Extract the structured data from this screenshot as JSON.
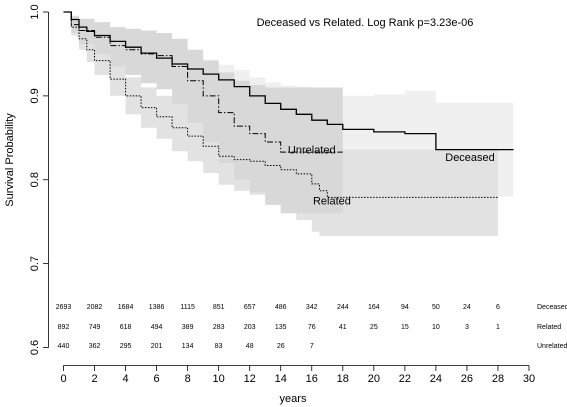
{
  "chart_data": {
    "type": "line",
    "title": "Deceased vs Related. Log Rank p=3.23e-06",
    "xlabel": "years",
    "ylabel": "Survival Probability",
    "xlim": [
      0,
      30
    ],
    "ylim": [
      0.6,
      1.0
    ],
    "x_ticks": [
      0,
      2,
      4,
      6,
      8,
      10,
      12,
      14,
      16,
      18,
      20,
      22,
      24,
      26,
      28,
      30
    ],
    "y_ticks": [
      0.6,
      0.7,
      0.8,
      0.9,
      1.0
    ],
    "y_tick_labels": [
      "0.6",
      "0.7",
      "0.8",
      "0.9",
      "1.0"
    ],
    "grid": false,
    "legend": "none",
    "series": [
      {
        "name": "Deceased",
        "line_style": "solid",
        "band_color": "#f0f0f0",
        "x": [
          0,
          0.5,
          1,
          1.5,
          2,
          3,
          4,
          5,
          6,
          7,
          8,
          9,
          10,
          11,
          12,
          13,
          14,
          15,
          16,
          17,
          18,
          20,
          22,
          24,
          26,
          28,
          29
        ],
        "y": [
          1.0,
          0.991,
          0.982,
          0.977,
          0.972,
          0.965,
          0.958,
          0.951,
          0.945,
          0.938,
          0.932,
          0.926,
          0.919,
          0.911,
          0.9,
          0.891,
          0.884,
          0.878,
          0.871,
          0.866,
          0.86,
          0.857,
          0.855,
          0.836,
          0.836,
          0.836,
          0.836
        ],
        "lower": [
          1.0,
          0.985,
          0.975,
          0.969,
          0.963,
          0.955,
          0.947,
          0.939,
          0.932,
          0.924,
          0.917,
          0.909,
          0.901,
          0.891,
          0.878,
          0.866,
          0.855,
          0.845,
          0.836,
          0.829,
          0.82,
          0.81,
          0.803,
          0.78,
          0.78,
          0.78,
          0.78
        ],
        "upper": [
          1.0,
          0.996,
          0.989,
          0.985,
          0.981,
          0.975,
          0.969,
          0.963,
          0.958,
          0.952,
          0.947,
          0.943,
          0.937,
          0.931,
          0.922,
          0.916,
          0.912,
          0.911,
          0.906,
          0.903,
          0.9,
          0.902,
          0.906,
          0.892,
          0.892,
          0.892,
          0.892
        ]
      },
      {
        "name": "Related",
        "line_style": "dotted",
        "band_color": "#e2e2e2",
        "x": [
          0,
          0.5,
          1,
          1.5,
          2,
          3,
          4,
          5,
          6,
          7,
          8,
          9,
          10,
          11,
          12,
          13,
          14,
          15,
          16,
          16.5,
          17,
          18,
          20,
          22,
          24,
          26,
          28
        ],
        "y": [
          1.0,
          0.982,
          0.968,
          0.955,
          0.942,
          0.92,
          0.9,
          0.886,
          0.875,
          0.862,
          0.852,
          0.84,
          0.828,
          0.824,
          0.822,
          0.817,
          0.812,
          0.807,
          0.795,
          0.787,
          0.779,
          0.779,
          0.779,
          0.779,
          0.779,
          0.779,
          0.779
        ],
        "lower": [
          1.0,
          0.972,
          0.955,
          0.94,
          0.925,
          0.9,
          0.878,
          0.862,
          0.849,
          0.834,
          0.822,
          0.808,
          0.794,
          0.787,
          0.782,
          0.772,
          0.762,
          0.752,
          0.738,
          0.733,
          0.733,
          0.733,
          0.733,
          0.733,
          0.733,
          0.733,
          0.733
        ],
        "upper": [
          1.0,
          0.99,
          0.98,
          0.97,
          0.958,
          0.94,
          0.922,
          0.91,
          0.9,
          0.89,
          0.882,
          0.872,
          0.862,
          0.86,
          0.862,
          0.862,
          0.862,
          0.862,
          0.855,
          0.845,
          0.836,
          0.836,
          0.836,
          0.836,
          0.836,
          0.836,
          0.836
        ]
      },
      {
        "name": "Unrelated",
        "line_style": "dashdot",
        "band_color": "#d8d8d8",
        "x": [
          0,
          0.5,
          1,
          2,
          3,
          4,
          5,
          6,
          7,
          8,
          9,
          10,
          11,
          12,
          13,
          14,
          15,
          16,
          17,
          18
        ],
        "y": [
          1.0,
          0.985,
          0.978,
          0.97,
          0.96,
          0.955,
          0.95,
          0.948,
          0.935,
          0.918,
          0.9,
          0.88,
          0.864,
          0.855,
          0.845,
          0.833,
          0.833,
          0.833,
          0.833,
          0.833
        ],
        "lower": [
          1.0,
          0.975,
          0.962,
          0.95,
          0.935,
          0.925,
          0.915,
          0.908,
          0.89,
          0.868,
          0.845,
          0.82,
          0.8,
          0.785,
          0.77,
          0.76,
          0.76,
          0.76,
          0.76,
          0.76
        ],
        "upper": [
          1.0,
          0.995,
          0.992,
          0.988,
          0.982,
          0.98,
          0.978,
          0.975,
          0.968,
          0.955,
          0.942,
          0.928,
          0.918,
          0.913,
          0.91,
          0.91,
          0.91,
          0.91,
          0.91,
          0.91
        ]
      }
    ],
    "annotations": [
      {
        "text": "Unrelated",
        "x": 16.0,
        "y": 0.836
      },
      {
        "text": "Deceased",
        "x": 26.2,
        "y": 0.827
      },
      {
        "text": "Related",
        "x": 17.3,
        "y": 0.775
      }
    ],
    "risk_table": {
      "x": [
        0,
        2,
        4,
        6,
        8,
        10,
        12,
        14,
        16,
        18,
        20,
        22,
        24,
        26,
        28
      ],
      "rows": [
        {
          "label": "Deceased",
          "counts": [
            "2693",
            "2082",
            "1684",
            "1386",
            "1115",
            "851",
            "657",
            "486",
            "342",
            "244",
            "164",
            "94",
            "50",
            "24",
            "6"
          ]
        },
        {
          "label": "Related",
          "counts": [
            "892",
            "749",
            "618",
            "494",
            "389",
            "283",
            "203",
            "135",
            "76",
            "41",
            "25",
            "15",
            "10",
            "3",
            "1"
          ]
        },
        {
          "label": "Unrelated",
          "counts": [
            "440",
            "362",
            "295",
            "201",
            "134",
            "83",
            "48",
            "26",
            "7"
          ]
        }
      ]
    }
  }
}
